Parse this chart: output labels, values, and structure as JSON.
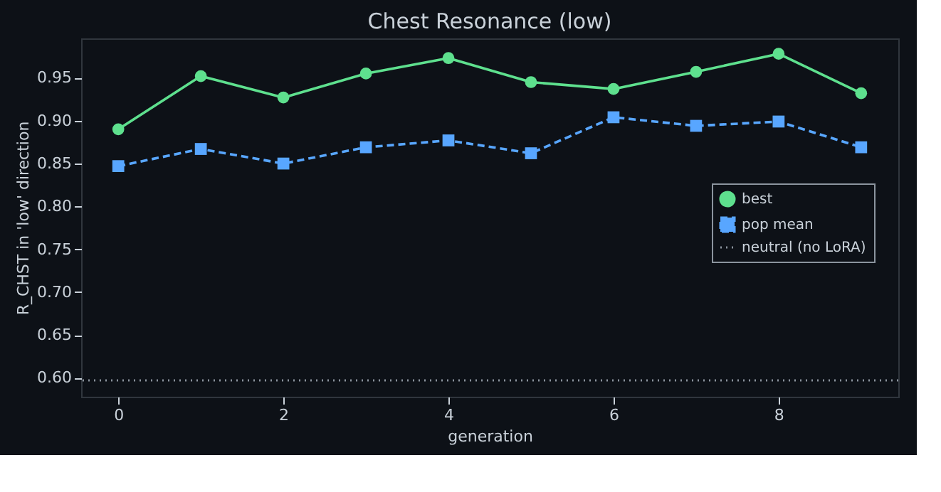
{
  "chart_data": {
    "type": "line",
    "title": "Chest Resonance (low)",
    "xlabel": "generation",
    "ylabel": "R_CHST in 'low' direction",
    "x": [
      0,
      1,
      2,
      3,
      4,
      5,
      6,
      7,
      8,
      9
    ],
    "series": [
      {
        "name": "best",
        "color": "#5ee08e",
        "marker": "circle",
        "line_style": "solid",
        "values": [
          0.89,
          0.952,
          0.927,
          0.955,
          0.973,
          0.945,
          0.937,
          0.957,
          0.978,
          0.932
        ]
      },
      {
        "name": "pop mean",
        "color": "#58a6ff",
        "marker": "square",
        "line_style": "dashed",
        "values": [
          0.847,
          0.867,
          0.85,
          0.869,
          0.877,
          0.862,
          0.904,
          0.894,
          0.899,
          0.869
        ]
      }
    ],
    "ref_lines": [
      {
        "axis": "y",
        "value": 0.597,
        "label": "neutral (no LoRA)",
        "color": "#8b949e",
        "line_style": "dotted"
      }
    ],
    "xlim": [
      -0.45,
      9.45
    ],
    "ylim": [
      0.578,
      0.996
    ],
    "xticks": [
      0,
      2,
      4,
      6,
      8
    ],
    "yticks": [
      {
        "value": 0.6,
        "label": "0.60"
      },
      0.65,
      {
        "value": 0.7,
        "label": "0.70"
      },
      0.75,
      {
        "value": 0.8,
        "label": "0.80"
      },
      0.85,
      {
        "value": 0.9,
        "label": "0.90"
      },
      0.95
    ],
    "grid": false,
    "legend": "right"
  }
}
